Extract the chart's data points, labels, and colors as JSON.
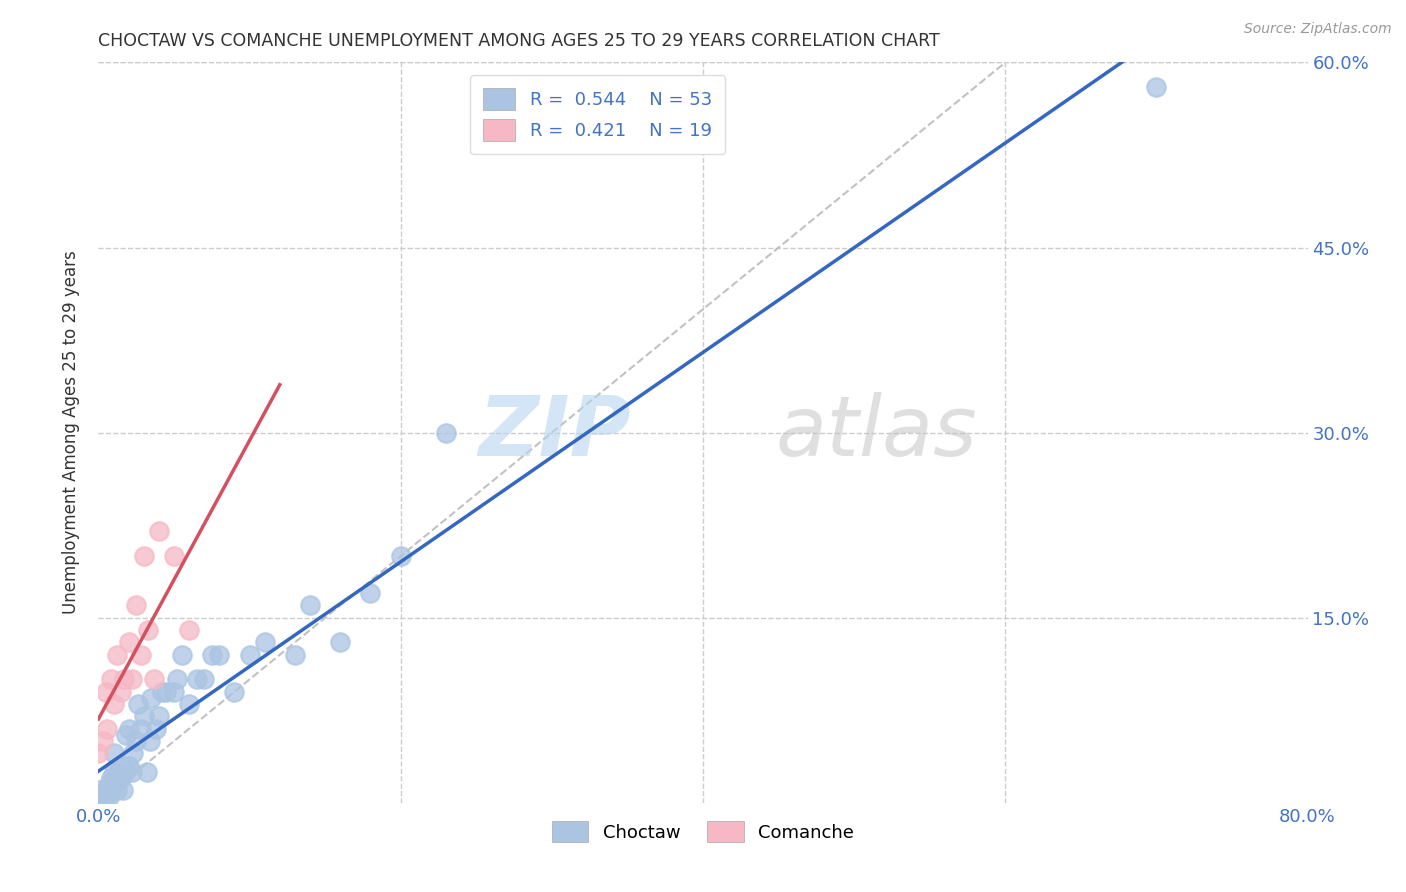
{
  "title": "CHOCTAW VS COMANCHE UNEMPLOYMENT AMONG AGES 25 TO 29 YEARS CORRELATION CHART",
  "source": "Source: ZipAtlas.com",
  "ylabel": "Unemployment Among Ages 25 to 29 years",
  "xlim": [
    0.0,
    0.8
  ],
  "ylim": [
    0.0,
    0.6
  ],
  "xtick_positions": [
    0.0,
    0.1,
    0.2,
    0.3,
    0.4,
    0.5,
    0.6,
    0.7,
    0.8
  ],
  "xticklabels": [
    "0.0%",
    "",
    "",
    "",
    "",
    "",
    "",
    "",
    "80.0%"
  ],
  "ytick_positions": [
    0.15,
    0.3,
    0.45,
    0.6
  ],
  "ytick_labels": [
    "15.0%",
    "30.0%",
    "45.0%",
    "60.0%"
  ],
  "choctaw_R": 0.544,
  "choctaw_N": 53,
  "comanche_R": 0.421,
  "comanche_N": 19,
  "choctaw_color": "#aac4e2",
  "comanche_color": "#f5b8c4",
  "choctaw_line_color": "#3468c0",
  "comanche_line_color": "#d45060",
  "diagonal_color": "#bbbbbb",
  "background_color": "#ffffff",
  "grid_color": "#cccccc",
  "choctaw_x": [
    0.0,
    0.0,
    0.0,
    0.005,
    0.005,
    0.007,
    0.007,
    0.008,
    0.009,
    0.01,
    0.01,
    0.01,
    0.012,
    0.012,
    0.013,
    0.015,
    0.015,
    0.016,
    0.018,
    0.018,
    0.02,
    0.02,
    0.022,
    0.023,
    0.025,
    0.026,
    0.028,
    0.03,
    0.032,
    0.034,
    0.035,
    0.038,
    0.04,
    0.042,
    0.045,
    0.05,
    0.052,
    0.055,
    0.06,
    0.065,
    0.07,
    0.075,
    0.08,
    0.09,
    0.1,
    0.11,
    0.13,
    0.14,
    0.16,
    0.18,
    0.2,
    0.23,
    0.7
  ],
  "choctaw_y": [
    0.0,
    0.01,
    0.005,
    0.005,
    0.01,
    0.005,
    0.015,
    0.02,
    0.01,
    0.015,
    0.025,
    0.04,
    0.01,
    0.02,
    0.025,
    0.02,
    0.03,
    0.01,
    0.025,
    0.055,
    0.03,
    0.06,
    0.025,
    0.04,
    0.05,
    0.08,
    0.06,
    0.07,
    0.025,
    0.05,
    0.085,
    0.06,
    0.07,
    0.09,
    0.09,
    0.09,
    0.1,
    0.12,
    0.08,
    0.1,
    0.1,
    0.12,
    0.12,
    0.09,
    0.12,
    0.13,
    0.12,
    0.16,
    0.13,
    0.17,
    0.2,
    0.3,
    0.58
  ],
  "comanche_x": [
    0.0,
    0.003,
    0.005,
    0.006,
    0.008,
    0.01,
    0.012,
    0.015,
    0.017,
    0.02,
    0.022,
    0.025,
    0.028,
    0.03,
    0.033,
    0.037,
    0.04,
    0.05,
    0.06
  ],
  "comanche_y": [
    0.04,
    0.05,
    0.09,
    0.06,
    0.1,
    0.08,
    0.12,
    0.09,
    0.1,
    0.13,
    0.1,
    0.16,
    0.12,
    0.2,
    0.14,
    0.1,
    0.22,
    0.2,
    0.14
  ]
}
